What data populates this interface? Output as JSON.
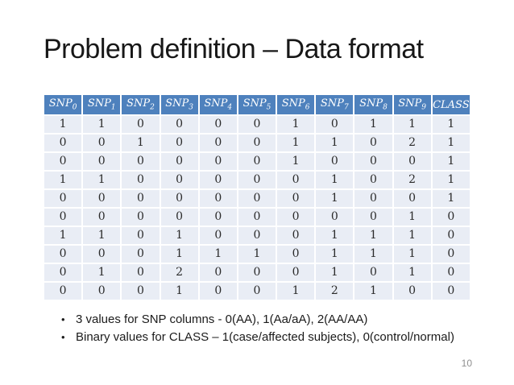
{
  "slide": {
    "title": "Problem definition – Data format",
    "page_number": "10"
  },
  "colors": {
    "header_bg": "#4e81bd",
    "header_text": "#ffffff",
    "row_bg": "#e9edf5"
  },
  "table": {
    "headers": [
      {
        "label": "SNP",
        "sub": "0"
      },
      {
        "label": "SNP",
        "sub": "1"
      },
      {
        "label": "SNP",
        "sub": "2"
      },
      {
        "label": "SNP",
        "sub": "3"
      },
      {
        "label": "SNP",
        "sub": "4"
      },
      {
        "label": "SNP",
        "sub": "5"
      },
      {
        "label": "SNP",
        "sub": "6"
      },
      {
        "label": "SNP",
        "sub": "7"
      },
      {
        "label": "SNP",
        "sub": "8"
      },
      {
        "label": "SNP",
        "sub": "9"
      },
      {
        "label": "CLASS",
        "sub": ""
      }
    ],
    "rows": [
      [
        "1",
        "1",
        "0",
        "0",
        "0",
        "0",
        "1",
        "0",
        "1",
        "1",
        "1"
      ],
      [
        "0",
        "0",
        "1",
        "0",
        "0",
        "0",
        "1",
        "1",
        "0",
        "2",
        "1"
      ],
      [
        "0",
        "0",
        "0",
        "0",
        "0",
        "0",
        "1",
        "0",
        "0",
        "0",
        "1"
      ],
      [
        "1",
        "1",
        "0",
        "0",
        "0",
        "0",
        "0",
        "1",
        "0",
        "2",
        "1"
      ],
      [
        "0",
        "0",
        "0",
        "0",
        "0",
        "0",
        "0",
        "1",
        "0",
        "0",
        "1"
      ],
      [
        "0",
        "0",
        "0",
        "0",
        "0",
        "0",
        "0",
        "0",
        "0",
        "1",
        "0"
      ],
      [
        "1",
        "1",
        "0",
        "1",
        "0",
        "0",
        "0",
        "1",
        "1",
        "1",
        "0"
      ],
      [
        "0",
        "0",
        "0",
        "1",
        "1",
        "1",
        "0",
        "1",
        "1",
        "1",
        "0"
      ],
      [
        "0",
        "1",
        "0",
        "2",
        "0",
        "0",
        "0",
        "1",
        "0",
        "1",
        "0"
      ],
      [
        "0",
        "0",
        "0",
        "1",
        "0",
        "0",
        "1",
        "2",
        "1",
        "0",
        "0"
      ]
    ]
  },
  "bullets": [
    "3 values for SNP columns - 0(AA), 1(Aa/aA), 2(AA/AA)",
    "Binary values for CLASS – 1(case/affected subjects), 0(control/normal)"
  ]
}
